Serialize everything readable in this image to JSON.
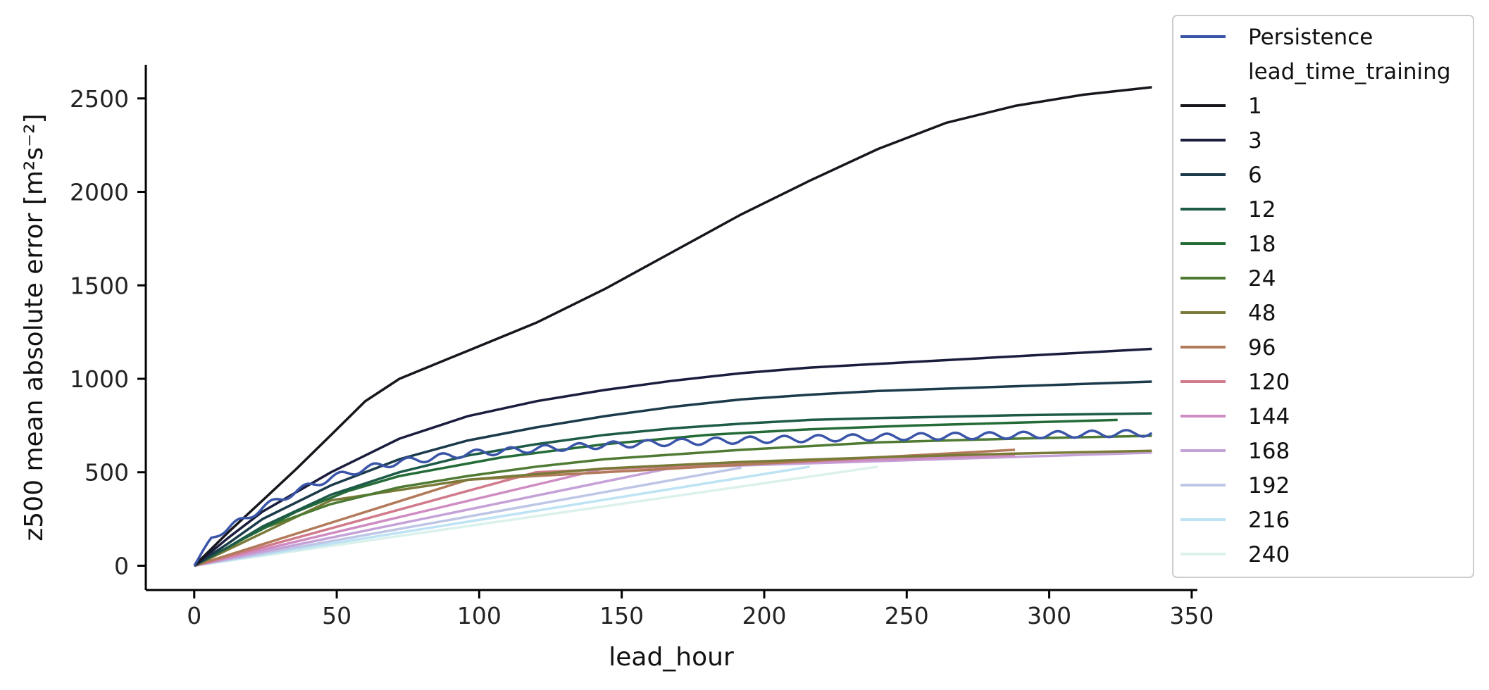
{
  "chart_data": {
    "type": "line",
    "xlabel": "lead_hour",
    "ylabel": "z500 mean absolute error [m²s⁻²]",
    "xlim": [
      -17,
      352
    ],
    "ylim": [
      -130,
      2680
    ],
    "xticks": [
      0,
      50,
      100,
      150,
      200,
      250,
      300,
      350
    ],
    "yticks": [
      0,
      500,
      1000,
      1500,
      2000,
      2500
    ],
    "grid": false,
    "legend_placement": "right, outside plot",
    "legend_title": "lead_time_training",
    "persistence": {
      "name": "Persistence",
      "color": "#3a55a8",
      "x_max": 336,
      "trend": [
        [
          0,
          0
        ],
        [
          6,
          150
        ],
        [
          12,
          200
        ],
        [
          24,
          310
        ],
        [
          36,
          400
        ],
        [
          48,
          470
        ],
        [
          60,
          520
        ],
        [
          72,
          555
        ],
        [
          96,
          600
        ],
        [
          120,
          625
        ],
        [
          144,
          645
        ],
        [
          168,
          660
        ],
        [
          192,
          672
        ],
        [
          216,
          680
        ],
        [
          240,
          688
        ],
        [
          288,
          698
        ],
        [
          336,
          710
        ]
      ],
      "diurnal_amplitude": 18,
      "diurnal_period_hours": 12
    },
    "series": [
      {
        "name": "1",
        "color": "#16161c",
        "points": [
          [
            0,
            0
          ],
          [
            12,
            180
          ],
          [
            24,
            350
          ],
          [
            36,
            520
          ],
          [
            48,
            700
          ],
          [
            60,
            880
          ],
          [
            72,
            1000
          ],
          [
            96,
            1150
          ],
          [
            120,
            1300
          ],
          [
            144,
            1480
          ],
          [
            168,
            1680
          ],
          [
            192,
            1880
          ],
          [
            216,
            2060
          ],
          [
            240,
            2230
          ],
          [
            264,
            2370
          ],
          [
            288,
            2460
          ],
          [
            312,
            2520
          ],
          [
            336,
            2560
          ]
        ]
      },
      {
        "name": "3",
        "color": "#1a1d3d",
        "points": [
          [
            0,
            0
          ],
          [
            12,
            150
          ],
          [
            24,
            290
          ],
          [
            48,
            500
          ],
          [
            72,
            680
          ],
          [
            96,
            800
          ],
          [
            120,
            880
          ],
          [
            144,
            940
          ],
          [
            168,
            990
          ],
          [
            192,
            1030
          ],
          [
            216,
            1060
          ],
          [
            240,
            1080
          ],
          [
            288,
            1120
          ],
          [
            336,
            1160
          ]
        ]
      },
      {
        "name": "6",
        "color": "#1b3a4a",
        "points": [
          [
            0,
            0
          ],
          [
            12,
            120
          ],
          [
            24,
            250
          ],
          [
            48,
            430
          ],
          [
            72,
            570
          ],
          [
            96,
            670
          ],
          [
            120,
            740
          ],
          [
            144,
            800
          ],
          [
            168,
            850
          ],
          [
            192,
            890
          ],
          [
            216,
            915
          ],
          [
            240,
            935
          ],
          [
            288,
            960
          ],
          [
            336,
            985
          ]
        ]
      },
      {
        "name": "12",
        "color": "#1d5a48",
        "points": [
          [
            0,
            0
          ],
          [
            12,
            100
          ],
          [
            24,
            210
          ],
          [
            48,
            380
          ],
          [
            72,
            500
          ],
          [
            96,
            590
          ],
          [
            120,
            650
          ],
          [
            144,
            700
          ],
          [
            168,
            735
          ],
          [
            192,
            760
          ],
          [
            216,
            780
          ],
          [
            240,
            790
          ],
          [
            288,
            805
          ],
          [
            336,
            815
          ]
        ]
      },
      {
        "name": "18",
        "color": "#246b37",
        "points": [
          [
            0,
            0
          ],
          [
            18,
            150
          ],
          [
            36,
            290
          ],
          [
            54,
            400
          ],
          [
            72,
            480
          ],
          [
            108,
            580
          ],
          [
            144,
            650
          ],
          [
            180,
            700
          ],
          [
            216,
            730
          ],
          [
            252,
            750
          ],
          [
            288,
            765
          ],
          [
            324,
            780
          ]
        ]
      },
      {
        "name": "24",
        "color": "#4e7a33",
        "points": [
          [
            0,
            0
          ],
          [
            24,
            200
          ],
          [
            48,
            330
          ],
          [
            72,
            420
          ],
          [
            96,
            480
          ],
          [
            120,
            530
          ],
          [
            144,
            570
          ],
          [
            192,
            620
          ],
          [
            240,
            660
          ],
          [
            288,
            680
          ],
          [
            336,
            695
          ]
        ]
      },
      {
        "name": "48",
        "color": "#7a7a38",
        "points": [
          [
            0,
            0
          ],
          [
            48,
            350
          ],
          [
            96,
            460
          ],
          [
            144,
            520
          ],
          [
            192,
            555
          ],
          [
            240,
            580
          ],
          [
            288,
            600
          ],
          [
            336,
            615
          ]
        ]
      },
      {
        "name": "96",
        "color": "#b27a5a",
        "points": [
          [
            0,
            0
          ],
          [
            96,
            460
          ],
          [
            192,
            540
          ],
          [
            288,
            620
          ]
        ]
      },
      {
        "name": "120",
        "color": "#d07a8c",
        "points": [
          [
            0,
            0
          ],
          [
            120,
            500
          ],
          [
            240,
            580
          ]
        ]
      },
      {
        "name": "144",
        "color": "#cf8cc2",
        "points": [
          [
            0,
            0
          ],
          [
            144,
            520
          ],
          [
            288,
            590
          ]
        ]
      },
      {
        "name": "168",
        "color": "#c4a2d8",
        "points": [
          [
            0,
            0
          ],
          [
            168,
            525
          ],
          [
            336,
            605
          ]
        ]
      },
      {
        "name": "192",
        "color": "#bec6e6",
        "points": [
          [
            0,
            0
          ],
          [
            192,
            525
          ]
        ]
      },
      {
        "name": "216",
        "color": "#bde3f4",
        "points": [
          [
            0,
            0
          ],
          [
            216,
            530
          ]
        ]
      },
      {
        "name": "240",
        "color": "#dbf1ec",
        "points": [
          [
            0,
            0
          ],
          [
            240,
            530
          ]
        ]
      }
    ]
  }
}
